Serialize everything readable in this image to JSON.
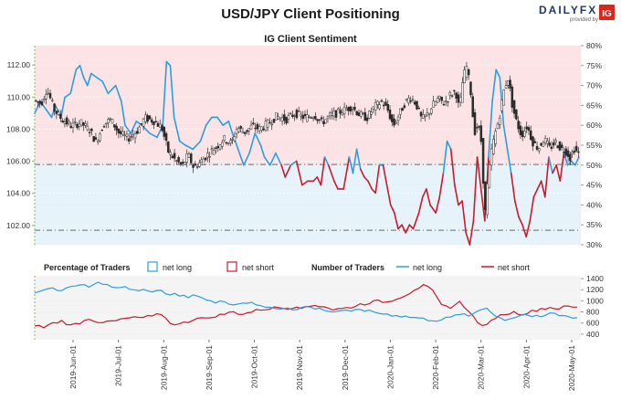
{
  "brand": {
    "name": "DAILYFX",
    "sub": "provided by",
    "badge": "IG",
    "badge_color": "#e2231a"
  },
  "colors": {
    "long": "#2a9fe0",
    "short": "#cc1a2b",
    "candle": "#2b2b2b",
    "bg_top": "#fbe3e6",
    "bg_bottom": "#e6f3fb",
    "panel_bg": "#f4f4f4",
    "guide": "#6a6a6a"
  },
  "chart_data": [
    {
      "type": "line",
      "title": "USD/JPY Client Positioning",
      "subtitle": "IG Client Sentiment",
      "y_left": {
        "ticks": [
          "112.00",
          "110.00",
          "108.00",
          "106.00",
          "104.00",
          "102.00"
        ],
        "values": [
          112,
          110,
          108,
          106,
          104,
          102
        ],
        "range": [
          100.8,
          113.2
        ]
      },
      "y_right": {
        "ticks": [
          "80%",
          "75%",
          "70%",
          "65%",
          "60%",
          "55%",
          "50%",
          "45%",
          "40%",
          "35%",
          "30%"
        ],
        "values": [
          80,
          75,
          70,
          65,
          60,
          55,
          50,
          45,
          40,
          35,
          30
        ],
        "range": [
          30,
          80
        ]
      },
      "reference_lines": [
        {
          "axis": "price",
          "value": 105.8
        },
        {
          "axis": "price",
          "value": 101.7
        }
      ],
      "series": [
        {
          "kind": "candlestick",
          "price_path": [
            [
              0,
              109.8
            ],
            [
              8,
              109.6
            ],
            [
              14,
              110.5
            ],
            [
              22,
              109.2
            ],
            [
              30,
              108.6
            ],
            [
              40,
              108.2
            ],
            [
              50,
              108.4
            ],
            [
              60,
              107.9
            ],
            [
              66,
              107.2
            ],
            [
              74,
              108.3
            ],
            [
              82,
              108.6
            ],
            [
              90,
              107.8
            ],
            [
              100,
              107.4
            ],
            [
              110,
              107.9
            ],
            [
              118,
              108.7
            ],
            [
              128,
              108.5
            ],
            [
              136,
              108.1
            ],
            [
              143,
              106.6
            ],
            [
              150,
              106.1
            ],
            [
              158,
              105.7
            ],
            [
              164,
              106.4
            ],
            [
              170,
              105.6
            ],
            [
              178,
              106.0
            ],
            [
              186,
              106.5
            ],
            [
              194,
              106.9
            ],
            [
              202,
              107.4
            ],
            [
              210,
              107.1
            ],
            [
              216,
              108.1
            ],
            [
              224,
              107.8
            ],
            [
              232,
              108.2
            ],
            [
              240,
              108.0
            ],
            [
              250,
              108.4
            ],
            [
              258,
              108.8
            ],
            [
              268,
              108.6
            ],
            [
              278,
              109.0
            ],
            [
              288,
              108.7
            ],
            [
              298,
              108.9
            ],
            [
              306,
              108.4
            ],
            [
              314,
              108.8
            ],
            [
              322,
              109.0
            ],
            [
              330,
              109.2
            ],
            [
              338,
              109.4
            ],
            [
              346,
              108.9
            ],
            [
              354,
              108.7
            ],
            [
              362,
              109.4
            ],
            [
              370,
              109.7
            ],
            [
              376,
              109.2
            ],
            [
              382,
              108.2
            ],
            [
              388,
              108.9
            ],
            [
              394,
              109.6
            ],
            [
              400,
              110.0
            ],
            [
              406,
              109.6
            ],
            [
              412,
              108.6
            ],
            [
              418,
              108.9
            ],
            [
              424,
              109.5
            ],
            [
              430,
              109.9
            ],
            [
              436,
              109.6
            ],
            [
              442,
              110.1
            ],
            [
              448,
              110.4
            ],
            [
              452,
              109.2
            ],
            [
              456,
              111.2
            ],
            [
              460,
              111.9
            ],
            [
              464,
              110.4
            ],
            [
              468,
              107.8
            ],
            [
              472,
              108.3
            ],
            [
              476,
              107.0
            ],
            [
              479,
              102.4
            ],
            [
              482,
              104.6
            ],
            [
              486,
              106.6
            ],
            [
              490,
              107.7
            ],
            [
              494,
              108.6
            ],
            [
              500,
              110.6
            ],
            [
              504,
              111.2
            ],
            [
              508,
              109.6
            ],
            [
              512,
              108.6
            ],
            [
              518,
              107.6
            ],
            [
              524,
              108.2
            ],
            [
              530,
              107.2
            ],
            [
              536,
              106.8
            ],
            [
              542,
              107.4
            ],
            [
              548,
              106.8
            ],
            [
              554,
              107.2
            ],
            [
              560,
              106.8
            ],
            [
              566,
              106.6
            ],
            [
              570,
              106.2
            ],
            [
              574,
              106.8
            ],
            [
              578,
              106.5
            ]
          ]
        },
        {
          "kind": "sentiment-line",
          "units": "percent net long",
          "long_color": "#2a9fe0",
          "short_color": "#cc1a2b",
          "path": [
            [
              0,
              63
            ],
            [
              6,
              66
            ],
            [
              12,
              64
            ],
            [
              18,
              62
            ],
            [
              22,
              65
            ],
            [
              28,
              62
            ],
            [
              32,
              67
            ],
            [
              38,
              68
            ],
            [
              44,
              74
            ],
            [
              48,
              75
            ],
            [
              52,
              72
            ],
            [
              56,
              70
            ],
            [
              60,
              73
            ],
            [
              66,
              72
            ],
            [
              72,
              71
            ],
            [
              78,
              68
            ],
            [
              82,
              69
            ],
            [
              86,
              70
            ],
            [
              92,
              66
            ],
            [
              96,
              60
            ],
            [
              102,
              58
            ],
            [
              108,
              61
            ],
            [
              114,
              60
            ],
            [
              122,
              58
            ],
            [
              130,
              57
            ],
            [
              136,
              60
            ],
            [
              140,
              76
            ],
            [
              144,
              75
            ],
            [
              148,
              62
            ],
            [
              154,
              56
            ],
            [
              160,
              55
            ],
            [
              168,
              54
            ],
            [
              176,
              56
            ],
            [
              182,
              60
            ],
            [
              188,
              62
            ],
            [
              194,
              62
            ],
            [
              200,
              60
            ],
            [
              206,
              61
            ],
            [
              210,
              58
            ],
            [
              216,
              54
            ],
            [
              222,
              50
            ],
            [
              228,
              53
            ],
            [
              234,
              58
            ],
            [
              240,
              55
            ],
            [
              244,
              52
            ],
            [
              250,
              50
            ],
            [
              256,
              53
            ],
            [
              262,
              50
            ],
            [
              266,
              47
            ],
            [
              272,
              50
            ],
            [
              278,
              51
            ],
            [
              284,
              45
            ],
            [
              290,
              46
            ],
            [
              296,
              46
            ],
            [
              300,
              47
            ],
            [
              304,
              45
            ],
            [
              308,
              52
            ],
            [
              312,
              50
            ],
            [
              318,
              46
            ],
            [
              322,
              44
            ],
            [
              328,
              44
            ],
            [
              334,
              52
            ],
            [
              338,
              48
            ],
            [
              342,
              54
            ],
            [
              346,
              49
            ],
            [
              350,
              47
            ],
            [
              354,
              46
            ],
            [
              358,
              44
            ],
            [
              362,
              43
            ],
            [
              366,
              50
            ],
            [
              370,
              50
            ],
            [
              374,
              45
            ],
            [
              378,
              40
            ],
            [
              382,
              38
            ],
            [
              386,
              34
            ],
            [
              390,
              35
            ],
            [
              394,
              33
            ],
            [
              398,
              35
            ],
            [
              402,
              34
            ],
            [
              408,
              38
            ],
            [
              412,
              42
            ],
            [
              416,
              44
            ],
            [
              420,
              40
            ],
            [
              426,
              38
            ],
            [
              430,
              42
            ],
            [
              434,
              48
            ],
            [
              438,
              56
            ],
            [
              442,
              54
            ],
            [
              446,
              45
            ],
            [
              450,
              40
            ],
            [
              454,
              41
            ],
            [
              458,
              33
            ],
            [
              462,
              30
            ],
            [
              466,
              36
            ],
            [
              470,
              52
            ],
            [
              474,
              44
            ],
            [
              478,
              36
            ],
            [
              482,
              52
            ],
            [
              486,
              66
            ],
            [
              490,
              74
            ],
            [
              494,
              72
            ],
            [
              498,
              60
            ],
            [
              502,
              54
            ],
            [
              506,
              48
            ],
            [
              510,
              41
            ],
            [
              514,
              37
            ],
            [
              518,
              35
            ],
            [
              522,
              32
            ],
            [
              526,
              36
            ],
            [
              530,
              42
            ],
            [
              534,
              44
            ],
            [
              538,
              46
            ],
            [
              542,
              42
            ],
            [
              546,
              52
            ],
            [
              550,
              48
            ],
            [
              554,
              50
            ],
            [
              558,
              46
            ],
            [
              562,
              53
            ],
            [
              566,
              50
            ],
            [
              570,
              51
            ],
            [
              574,
              50
            ],
            [
              578,
              52
            ]
          ]
        }
      ]
    },
    {
      "type": "line",
      "legend": {
        "pct_title": "Percentage of Traders",
        "net_long": "net long",
        "net_short": "net short",
        "num_title": "Number of Traders"
      },
      "y_right": {
        "ticks": [
          "1400",
          "1200",
          "1000",
          "800",
          "600",
          "400"
        ],
        "values": [
          1400,
          1200,
          1000,
          800,
          600,
          400
        ],
        "range": [
          300,
          1450
        ]
      },
      "x_ticks": [
        "2019-Jun-01",
        "2019-Jul-01",
        "2019-Aug-01",
        "2019-Sep-01",
        "2019-Oct-01",
        "2019-Nov-01",
        "2019-Dec-01",
        "2020-Jan-01",
        "2020-Feb-01",
        "2020-Mar-01",
        "2020-Apr-01",
        "2020-May-01"
      ],
      "series": [
        {
          "name": "net long",
          "color": "#2a9fe0",
          "values": [
            1150,
            1200,
            1240,
            1180,
            1260,
            1300,
            1240,
            1330,
            1280,
            1230,
            1260,
            1200,
            1220,
            1150,
            1180,
            1120,
            1090,
            1060,
            1100,
            1020,
            960,
            990,
            940,
            960,
            980,
            900,
            880,
            860,
            880,
            840,
            900,
            860,
            840,
            800,
            830,
            800,
            850,
            820,
            780,
            760,
            740,
            720,
            700,
            680,
            650,
            660,
            700,
            760,
            720,
            820,
            880,
            720,
            660,
            700,
            760,
            720,
            700,
            780,
            740,
            720,
            700
          ]
        },
        {
          "name": "net short",
          "color": "#cc1a2b",
          "values": [
            560,
            520,
            600,
            640,
            560,
            600,
            680,
            620,
            620,
            640,
            680,
            700,
            700,
            720,
            760,
            600,
            580,
            620,
            700,
            680,
            720,
            760,
            800,
            760,
            800,
            840,
            860,
            880,
            860,
            900,
            880,
            920,
            900,
            840,
            860,
            880,
            940,
            960,
            1000,
            980,
            1040,
            1100,
            1200,
            1280,
            1180,
            920,
            880,
            980,
            820,
            600,
            560,
            700,
            760,
            800,
            760,
            820,
            860,
            880,
            860,
            900,
            880
          ]
        }
      ]
    }
  ]
}
